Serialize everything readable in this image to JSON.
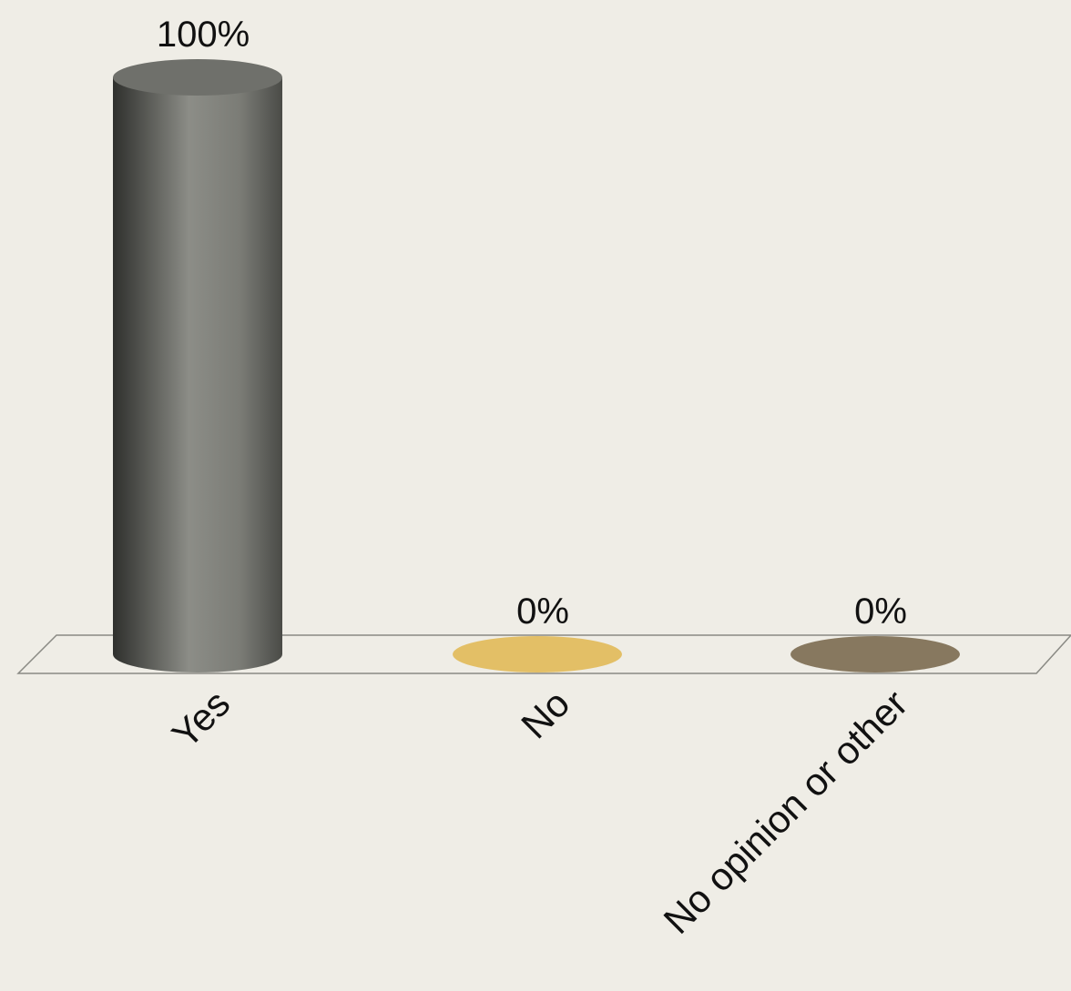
{
  "chart_data": {
    "type": "bar",
    "style": "3d-cylinder",
    "categories": [
      "Yes",
      "No",
      "No opinion or other"
    ],
    "values": [
      100,
      0,
      0
    ],
    "value_labels": [
      "100%",
      "0%",
      "0%"
    ],
    "colors": [
      "#6e6f6a",
      "#e3bf66",
      "#87785f"
    ],
    "ylim": [
      0,
      100
    ],
    "unit": "%",
    "grid": false,
    "legend": "none",
    "title": "",
    "xlabel": "",
    "ylabel": ""
  }
}
